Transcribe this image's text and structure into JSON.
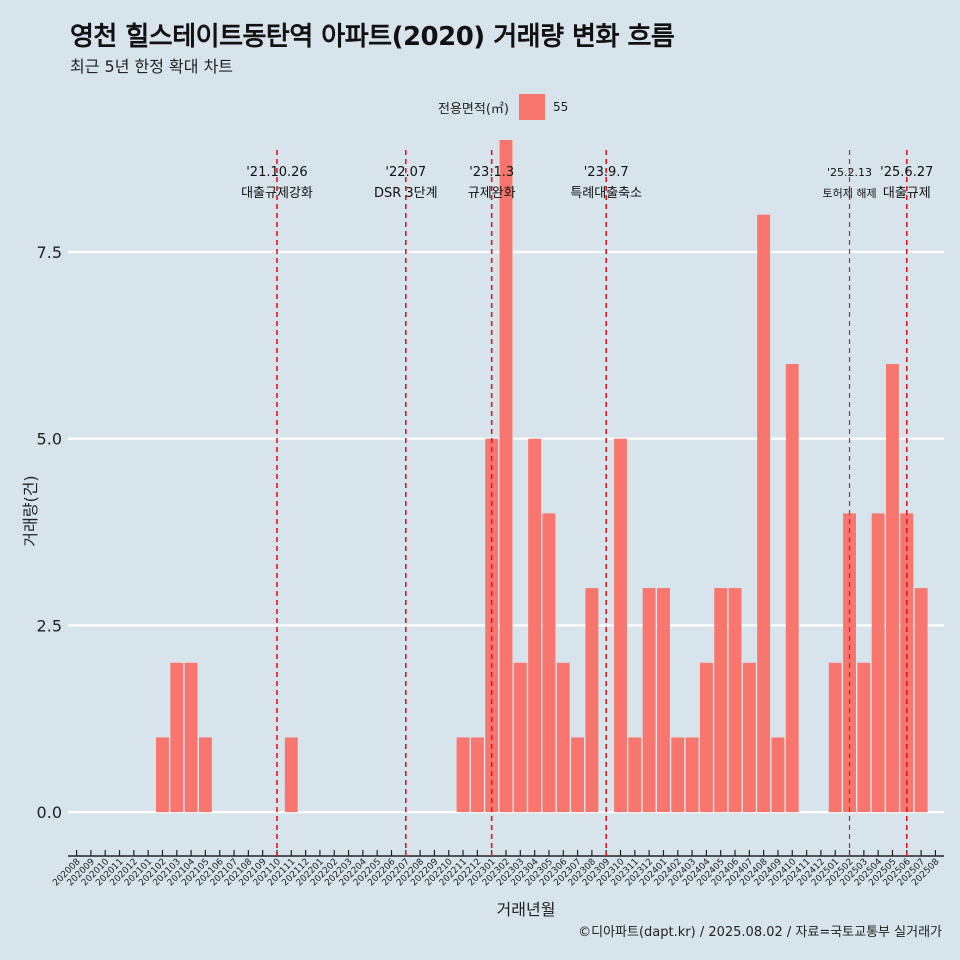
{
  "title": "영천 힐스테이트동탄역 아파트(2020) 거래량 변화 흐름",
  "subtitle": "최근 5년 한정 확대 차트",
  "caption": "©디아파트(dapt.kr) / 2025.08.02 / 자료=국토교통부 실거래가",
  "legend": {
    "title": "전용면적(㎡)",
    "item": "55",
    "color": "#f8766d"
  },
  "chart_data": {
    "type": "bar",
    "xlabel": "거래년월",
    "ylabel": "거래량(건)",
    "ylim": [
      -0.4,
      9.0
    ],
    "yticks": [
      0.0,
      2.5,
      5.0,
      7.5
    ],
    "ytick_labels": [
      "0.0",
      "2.5",
      "5.0",
      "7.5"
    ],
    "categories": [
      "202008",
      "202009",
      "202010",
      "202011",
      "202012",
      "202101",
      "202102",
      "202103",
      "202104",
      "202105",
      "202106",
      "202107",
      "202108",
      "202109",
      "202110",
      "202111",
      "202112",
      "202201",
      "202202",
      "202203",
      "202204",
      "202205",
      "202206",
      "202207",
      "202208",
      "202209",
      "202210",
      "202211",
      "202212",
      "202301",
      "202302",
      "202303",
      "202304",
      "202305",
      "202306",
      "202307",
      "202308",
      "202309",
      "202310",
      "202311",
      "202312",
      "202401",
      "202402",
      "202403",
      "202404",
      "202405",
      "202406",
      "202407",
      "202408",
      "202409",
      "202410",
      "202411",
      "202412",
      "202501",
      "202502",
      "202503",
      "202504",
      "202505",
      "202506",
      "202507",
      "202508"
    ],
    "series": [
      {
        "name": "55",
        "color": "#f8766d",
        "values": [
          0,
          0,
          0,
          0,
          0,
          0,
          1,
          2,
          2,
          1,
          0,
          0,
          0,
          0,
          0,
          1,
          0,
          0,
          0,
          0,
          0,
          0,
          0,
          0,
          0,
          0,
          0,
          1,
          1,
          5,
          9,
          2,
          5,
          4,
          2,
          1,
          3,
          0,
          5,
          1,
          3,
          3,
          1,
          1,
          2,
          3,
          3,
          2,
          8,
          1,
          6,
          0,
          0,
          2,
          4,
          2,
          4,
          6,
          4,
          3,
          0
        ]
      }
    ],
    "grid": true,
    "annotations": [
      {
        "category": "202110",
        "date": "'21.10.26",
        "label": "대출규제강화",
        "size": "normal"
      },
      {
        "category": "202207",
        "date": "'22.07",
        "label": "DSR 3단계",
        "size": "normal"
      },
      {
        "category": "202301",
        "date": "'23.1.3",
        "label": "규제완화",
        "size": "normal"
      },
      {
        "category": "202309",
        "date": "'23.9.7",
        "label": "특례대출축소",
        "size": "normal"
      },
      {
        "category": "202502",
        "date": "'25.2.13",
        "label": "토허제 해제",
        "size": "small"
      },
      {
        "category": "202506",
        "date": "'25.6.27",
        "label": "대출규제",
        "size": "normal"
      }
    ]
  }
}
